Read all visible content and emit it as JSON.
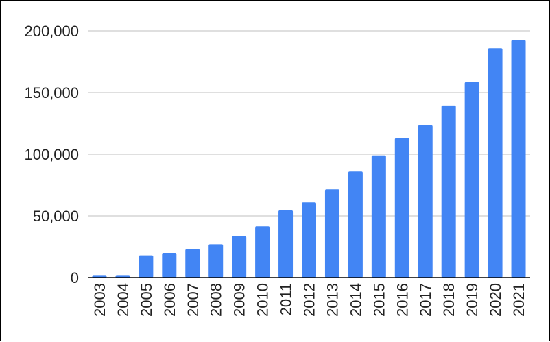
{
  "chart_data": {
    "type": "bar",
    "title": "",
    "xlabel": "",
    "ylabel": "",
    "categories": [
      "2003",
      "2004",
      "2005",
      "2006",
      "2007",
      "2008",
      "2009",
      "2010",
      "2011",
      "2012",
      "2013",
      "2014",
      "2015",
      "2016",
      "2017",
      "2018",
      "2019",
      "2020",
      "2021"
    ],
    "values": [
      2000,
      2000,
      18000,
      20000,
      23000,
      27000,
      33500,
      41500,
      54500,
      61000,
      71500,
      86000,
      99000,
      113000,
      123500,
      139500,
      158500,
      186000,
      192500
    ],
    "ylim": [
      0,
      200000
    ],
    "yticks": [
      0,
      50000,
      100000,
      150000,
      200000
    ],
    "ytick_labels": [
      "0",
      "50,000",
      "100,000",
      "150,000",
      "200,000"
    ],
    "grid": true,
    "legend": "none",
    "bar_color": "#4285f4",
    "grid_color": "#cccccc",
    "axis_color": "#000000"
  }
}
